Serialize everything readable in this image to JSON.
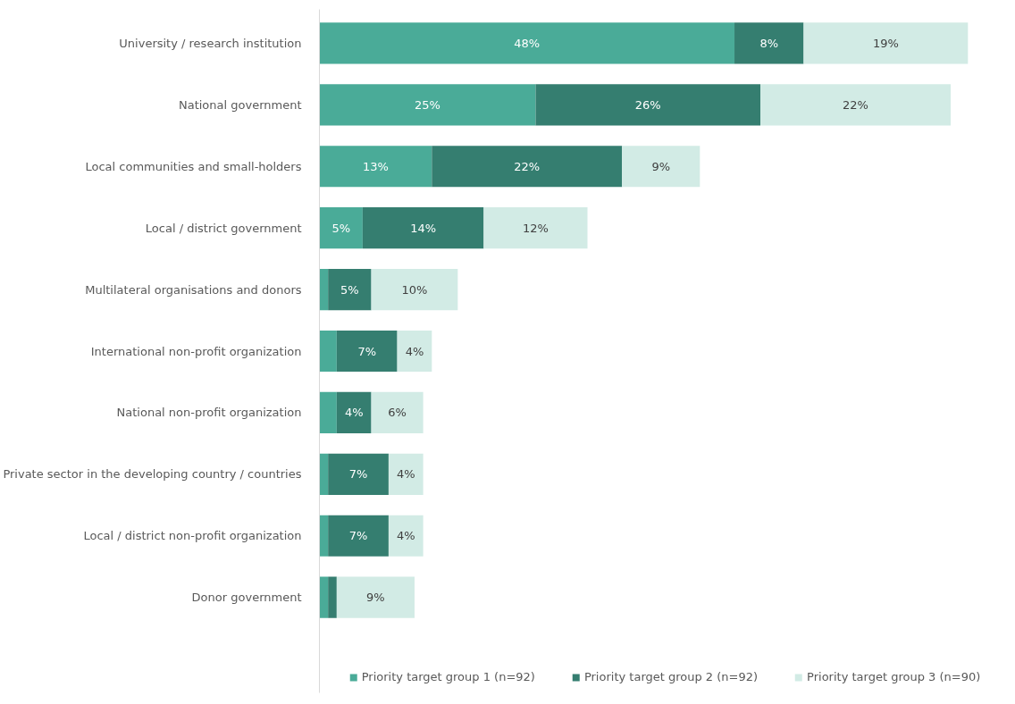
{
  "chart_data": {
    "type": "bar",
    "orientation": "horizontal",
    "stacked": true,
    "legend": "bottom",
    "grid": false,
    "tick_labels": "y",
    "categories": [
      "University / research institution",
      "National government",
      "Local communities and small-holders",
      "Local / district government",
      "Multilateral organisations and donors",
      "International non-profit organization",
      "National non-profit organization",
      "Private sector in the developing country / countries",
      "Local / district non-profit organization",
      "Donor government"
    ],
    "series": [
      {
        "name": "Priority target group 1 (n=92)",
        "color": "#4aab98",
        "values": [
          48,
          25,
          13,
          5,
          1,
          2,
          2,
          1,
          1,
          1
        ],
        "value_labels": [
          "48%",
          "25%",
          "13%",
          "5%",
          null,
          null,
          null,
          null,
          null,
          null
        ]
      },
      {
        "name": "Priority target group 2 (n=92)",
        "color": "#357e70",
        "values": [
          8,
          26,
          22,
          14,
          5,
          7,
          4,
          7,
          7,
          1
        ],
        "value_labels": [
          "8%",
          "26%",
          "22%",
          "14%",
          "5%",
          "7%",
          "4%",
          "7%",
          "7%",
          null
        ]
      },
      {
        "name": "Priority target group 3 (n=90)",
        "color": "#d2ebe5",
        "values": [
          19,
          22,
          9,
          12,
          10,
          4,
          6,
          4,
          4,
          9
        ],
        "value_labels": [
          "19%",
          "22%",
          "9%",
          "12%",
          "10%",
          "4%",
          "6%",
          "4%",
          "4%",
          "9%"
        ]
      }
    ]
  }
}
